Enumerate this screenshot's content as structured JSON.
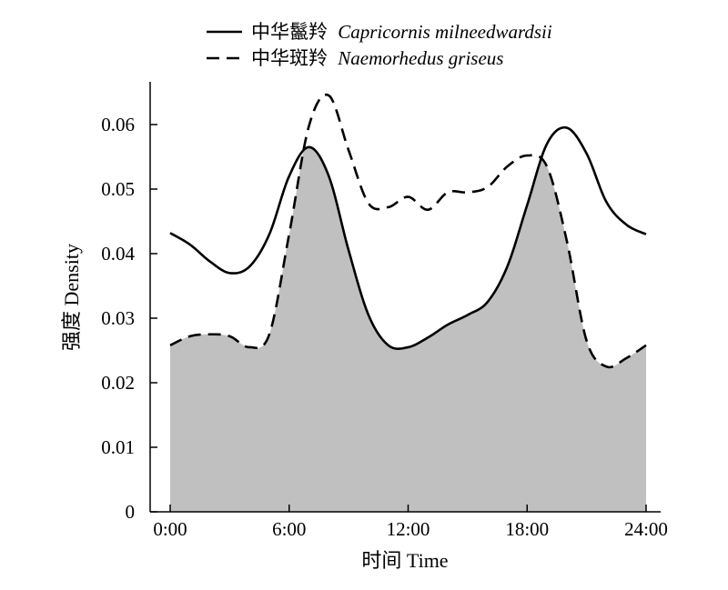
{
  "chart_data": {
    "type": "line",
    "xlabel": "时间 Time",
    "ylabel": "强度 Density",
    "xlim": [
      0,
      24
    ],
    "ylim": [
      0,
      0.06
    ],
    "x_ticks": [
      0,
      6,
      12,
      18,
      24
    ],
    "x_tick_labels": [
      "0:00",
      "6:00",
      "12:00",
      "18:00",
      "24:00"
    ],
    "y_ticks": [
      0,
      0.01,
      0.02,
      0.03,
      0.04,
      0.05,
      0.06
    ],
    "y_tick_labels": [
      "0",
      "0.01",
      "0.02",
      "0.03",
      "0.04",
      "0.05",
      "0.06"
    ],
    "grid": false,
    "legend_position": "top",
    "overlap_shading_color": "#c0c0c0",
    "series": [
      {
        "name": "中华鬣羚",
        "name_latin": "Capricornis milneedwardsii",
        "style": "solid",
        "x": [
          0,
          1,
          2,
          3,
          4,
          5,
          6,
          7,
          8,
          9,
          10,
          11,
          12,
          13,
          14,
          15,
          16,
          17,
          18,
          19,
          20,
          21,
          22,
          23,
          24
        ],
        "y": [
          0.0432,
          0.0414,
          0.0388,
          0.037,
          0.038,
          0.043,
          0.052,
          0.0565,
          0.052,
          0.0405,
          0.0305,
          0.0258,
          0.0255,
          0.027,
          0.029,
          0.0305,
          0.0325,
          0.038,
          0.0475,
          0.057,
          0.0595,
          0.0555,
          0.048,
          0.0445,
          0.043
        ]
      },
      {
        "name": "中华斑羚",
        "name_latin": "Naemorhedus griseus",
        "style": "dashed",
        "x": [
          0,
          1,
          2,
          3,
          4,
          5,
          6,
          7,
          8,
          9,
          10,
          11,
          12,
          13,
          14,
          15,
          16,
          17,
          18,
          19,
          20,
          21,
          22,
          23,
          24
        ],
        "y": [
          0.0258,
          0.0272,
          0.0275,
          0.0272,
          0.0255,
          0.0275,
          0.043,
          0.0598,
          0.0645,
          0.056,
          0.0478,
          0.0472,
          0.0488,
          0.0468,
          0.0495,
          0.0495,
          0.0503,
          0.0535,
          0.0552,
          0.0535,
          0.042,
          0.0265,
          0.0225,
          0.0238,
          0.0258
        ]
      }
    ]
  }
}
